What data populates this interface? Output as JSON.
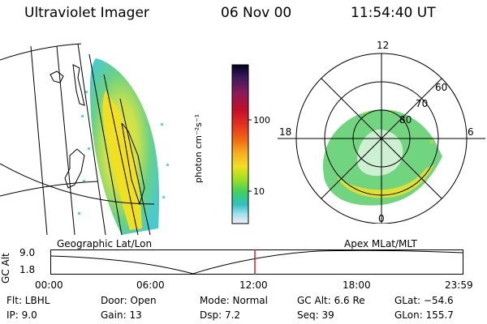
{
  "header": {
    "title": "Ultraviolet Imager",
    "date": "06 Nov 00",
    "time": "11:54:40 UT"
  },
  "panels": {
    "left_label": "Geographic Lat/Lon",
    "right_label": "Apex MLat/MLT"
  },
  "colorbar": {
    "unit_label": "photon cm⁻²s⁻¹",
    "ticks": [
      "100",
      "10"
    ],
    "colors": [
      "#000020",
      "#3a1a5a",
      "#8b1a5a",
      "#c0102a",
      "#e83020",
      "#f07010",
      "#f8b020",
      "#f0e020",
      "#a0e020",
      "#40d060",
      "#30c0c0",
      "#a0e0f0",
      "#f0f0f0"
    ]
  },
  "polar": {
    "mlt_labels": [
      "12",
      "18",
      "6",
      "0"
    ],
    "lat_labels": [
      "60",
      "70",
      "80"
    ]
  },
  "timeline": {
    "y_label": "GC Alt",
    "y_ticks": [
      "9.0",
      "1.8"
    ],
    "x_ticks": [
      "00:00",
      "06:00",
      "12:00",
      "18:00",
      "23:59"
    ]
  },
  "info": {
    "flt": "Flt:  LBHL",
    "ip": "IP:  9.0",
    "door": "Door:  Open",
    "gain": "Gain:  13",
    "mode": "Mode:  Normal",
    "dsp": "Dsp:      7.2",
    "gcalt": "GC Alt:  6.6 Re",
    "seq": "Seq:  39",
    "glat": "GLat:  −54.6",
    "glon": "GLon:  155.7"
  }
}
